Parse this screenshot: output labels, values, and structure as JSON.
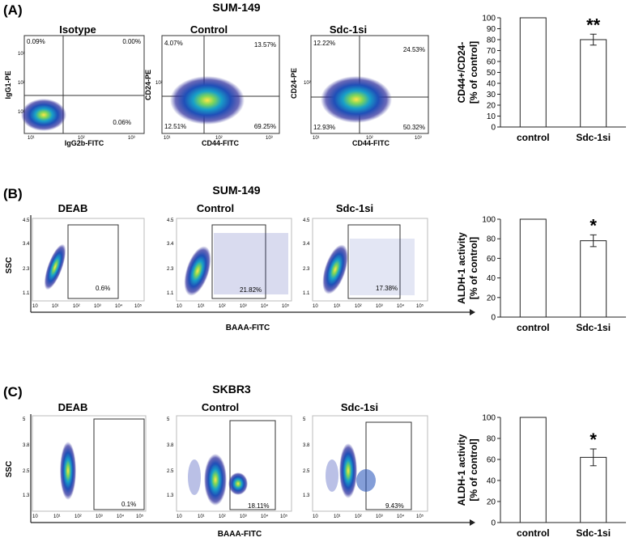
{
  "panels": [
    {
      "label": "(A)",
      "cell_line": "SUM-149",
      "plots": [
        {
          "title": "Isotype",
          "xlabel": "IgG2b-FITC",
          "ylabel": "IgG1-PE",
          "quadrants": [
            "0.09%",
            "0.00%",
            "",
            "0.06%"
          ]
        },
        {
          "title": "Control",
          "xlabel": "CD44-FITC",
          "ylabel": "CD24-PE",
          "quadrants": [
            "4.07%",
            "13.57%",
            "12.51%",
            "69.25%"
          ]
        },
        {
          "title": "Sdc-1si",
          "xlabel": "CD44-FITC",
          "ylabel": "CD24-PE",
          "quadrants": [
            "12.22%",
            "24.53%",
            "12.93%",
            "50.32%"
          ]
        }
      ],
      "axis_ticks": [
        "10¹",
        "10²",
        "10³"
      ]
    },
    {
      "label": "(B)",
      "cell_line": "SUM-149",
      "shared_xlabel": "BAAA-FITC",
      "ylabel": "SSC",
      "yticks": [
        "1.1",
        "2.3",
        "3.4",
        "4.5"
      ],
      "xticks": [
        "10",
        "10¹",
        "10²",
        "10³",
        "10⁴",
        "10⁵"
      ],
      "plots": [
        {
          "title": "DEAB",
          "gate_pct": "0.6%"
        },
        {
          "title": "Control",
          "gate_pct": "21.82%"
        },
        {
          "title": "Sdc-1si",
          "gate_pct": "17.38%"
        }
      ]
    },
    {
      "label": "(C)",
      "cell_line": "SKBR3",
      "shared_xlabel": "BAAA-FITC",
      "ylabel": "SSC",
      "yticks": [
        "1.3",
        "2.5",
        "3.8",
        "5"
      ],
      "xticks": [
        "10",
        "10¹",
        "10²",
        "10³",
        "10⁴",
        "10⁵"
      ],
      "plots": [
        {
          "title": "DEAB",
          "gate_pct": "0.1%"
        },
        {
          "title": "Control",
          "gate_pct": "18.11%"
        },
        {
          "title": "Sdc-1si",
          "gate_pct": "9.43%"
        }
      ]
    }
  ],
  "chart_data": [
    {
      "type": "bar",
      "categories": [
        "control",
        "Sdc-1si"
      ],
      "values": [
        100,
        80
      ],
      "errors": [
        0,
        5
      ],
      "significance": [
        "",
        "**"
      ],
      "ylabel": "CD44+/CD24-\n[% of control]",
      "ylim": [
        0,
        100
      ],
      "yticks": [
        0,
        10,
        20,
        30,
        40,
        50,
        60,
        70,
        80,
        90,
        100
      ]
    },
    {
      "type": "bar",
      "categories": [
        "control",
        "Sdc-1si"
      ],
      "values": [
        100,
        78
      ],
      "errors": [
        0,
        6
      ],
      "significance": [
        "",
        "*"
      ],
      "ylabel": "ALDH-1 activity\n[% of control]",
      "ylim": [
        0,
        100
      ],
      "yticks": [
        0,
        20,
        40,
        60,
        80,
        100
      ]
    },
    {
      "type": "bar",
      "categories": [
        "control",
        "Sdc-1si"
      ],
      "values": [
        100,
        62
      ],
      "errors": [
        0,
        8
      ],
      "significance": [
        "",
        "*"
      ],
      "ylabel": "ALDH-1 activity\n[% of control]",
      "ylim": [
        0,
        100
      ],
      "yticks": [
        0,
        20,
        40,
        60,
        80,
        100
      ]
    }
  ]
}
